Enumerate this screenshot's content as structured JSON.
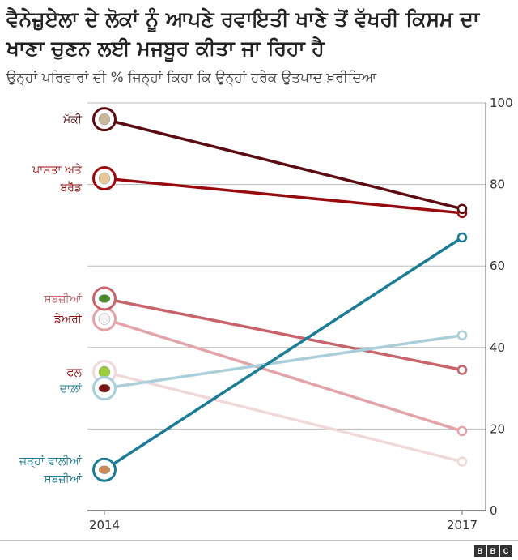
{
  "title": "ਵੈਨੇਜ਼ੁਏਲਾ ਦੇ ਲੋਕਾਂ ਨੂੰ ਆਪਣੇ ਰਵਾਇਤੀ ਖਾਣੇ ਤੋਂ ਵੱਖਰੀ ਕਿਸਮ ਦਾ ਖਾਣਾ ਚੁਣਨ ਲਈ ਮਜਬੂਰ ਕੀਤਾ ਜਾ ਰਿਹਾ ਹੈ",
  "subtitle": "ਉਨ੍ਹਾਂ ਪਰਿਵਾਰਾਂ ਦੀ % ਜਿਨ੍ਹਾਂ ਕਿਹਾ ਕਿ ਉਨ੍ਹਾਂ ਹਰੇਕ ਉਤਪਾਦ ਖ਼ਰੀਦਿਆ",
  "logo": "BBC",
  "chart_data": {
    "type": "line",
    "x": [
      "2014",
      "2017"
    ],
    "ylim": [
      0,
      100
    ],
    "yticks": [
      0,
      20,
      40,
      60,
      80,
      100
    ],
    "grid": true,
    "series": [
      {
        "name": "ਮੱਕੀ",
        "icon": "corn-flour-icon",
        "color": "#5c0a0d",
        "values": [
          96,
          74
        ]
      },
      {
        "name": "ਪਾਸਤਾ ਅਤੇ ਬਰੈੱਡ",
        "icon": "bread-icon",
        "color": "#990a0f",
        "values": [
          81.5,
          73
        ]
      },
      {
        "name": "ਸਬਜ਼ੀਆਂ",
        "icon": "green-bean-icon",
        "color": "#c9646c",
        "values": [
          52,
          34.5
        ]
      },
      {
        "name": "ਡੇਅਰੀ",
        "icon": "milk-icon",
        "color": "#e3a4a9",
        "values": [
          47,
          19.5
        ]
      },
      {
        "name": "ਫਲ",
        "icon": "apple-icon",
        "color": "#f1d8db",
        "values": [
          34,
          12
        ]
      },
      {
        "name": "ਦਾਲ਼ਾਂ",
        "icon": "bean-icon",
        "color": "#a9cfd9",
        "values": [
          30,
          43
        ]
      },
      {
        "name": "ਜੜ੍ਹਾਂ ਵਾਲੀਆਂ ਸਬਜ਼ੀਆਂ",
        "icon": "potato-icon",
        "color": "#1b7c96",
        "values": [
          10,
          67
        ]
      }
    ]
  }
}
